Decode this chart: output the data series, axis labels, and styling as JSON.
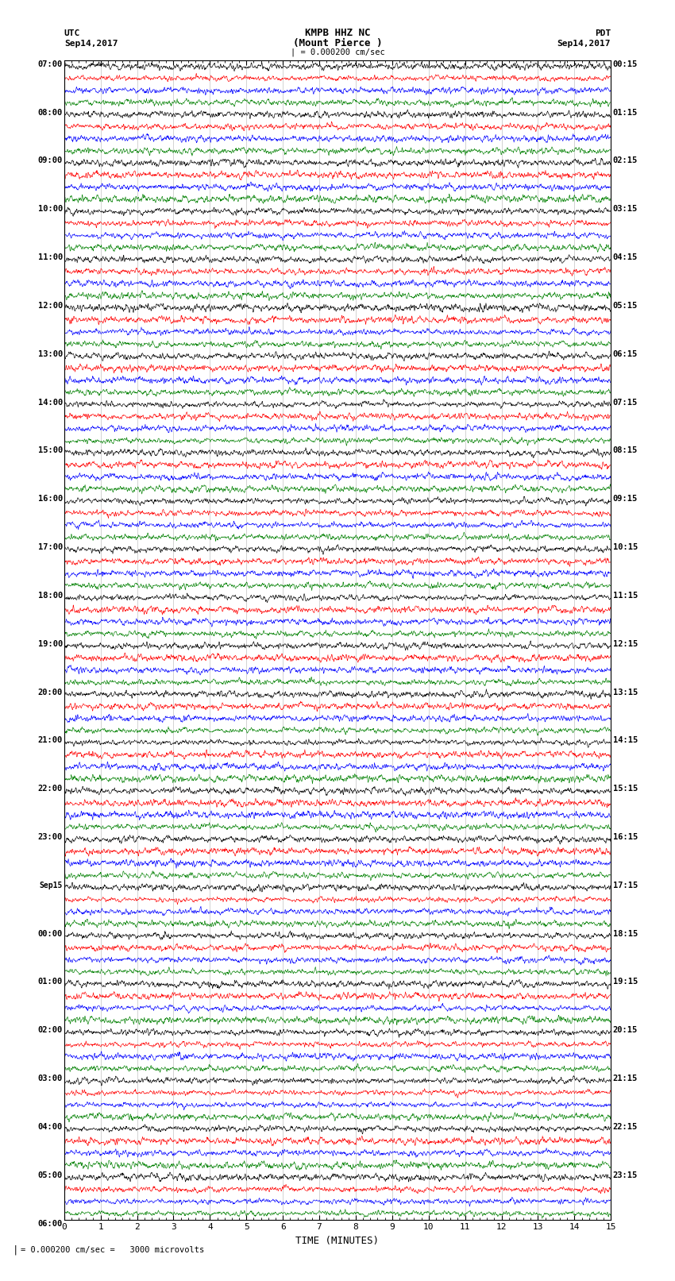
{
  "title_line1": "KMPB HHZ NC",
  "title_line2": "(Mount Pierce )",
  "title_scale": "| = 0.000200 cm/sec",
  "left_label_top": "UTC",
  "left_label_date": "Sep14,2017",
  "right_label_top": "PDT",
  "right_label_date": "Sep14,2017",
  "bottom_label": "TIME (MINUTES)",
  "scale_note": "= 0.000200 cm/sec =   3000 microvolts",
  "xlabel_ticks": [
    0,
    1,
    2,
    3,
    4,
    5,
    6,
    7,
    8,
    9,
    10,
    11,
    12,
    13,
    14,
    15
  ],
  "trace_colors": [
    "black",
    "red",
    "blue",
    "green"
  ],
  "n_hours": 24,
  "traces_per_hour": 4,
  "fig_width": 8.5,
  "fig_height": 16.13,
  "bg_color": "white",
  "left_times": [
    "07:00",
    "08:00",
    "09:00",
    "10:00",
    "11:00",
    "12:00",
    "13:00",
    "14:00",
    "15:00",
    "16:00",
    "17:00",
    "18:00",
    "19:00",
    "20:00",
    "21:00",
    "22:00",
    "23:00",
    "Sep15",
    "00:00",
    "01:00",
    "02:00",
    "03:00",
    "04:00",
    "05:00",
    "06:00"
  ],
  "right_times": [
    "00:15",
    "01:15",
    "02:15",
    "03:15",
    "04:15",
    "05:15",
    "06:15",
    "07:15",
    "08:15",
    "09:15",
    "10:15",
    "11:15",
    "12:15",
    "13:15",
    "14:15",
    "15:15",
    "16:15",
    "17:15",
    "18:15",
    "19:15",
    "20:15",
    "21:15",
    "22:15",
    "23:15",
    ""
  ]
}
